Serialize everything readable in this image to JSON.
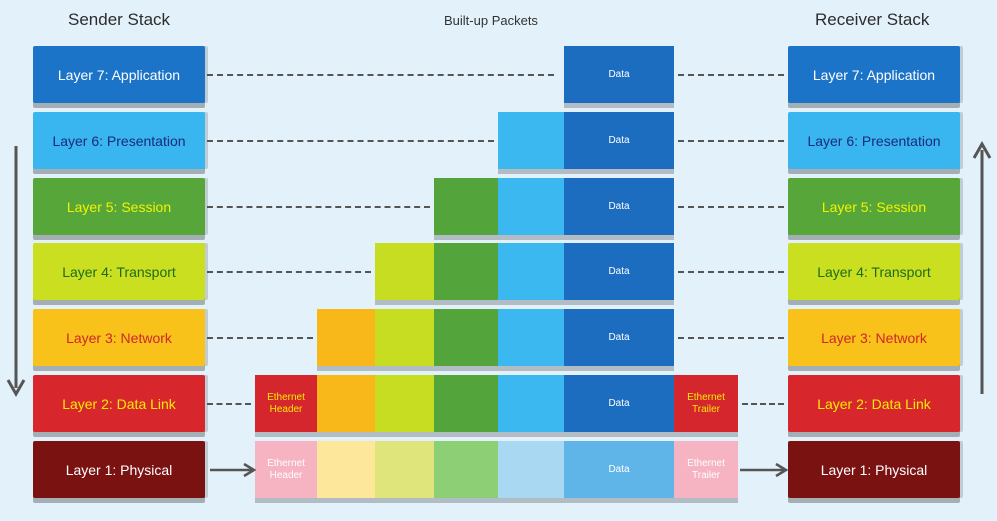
{
  "headers": {
    "sender": "Sender Stack",
    "packets": "Built-up Packets",
    "receiver": "Receiver Stack"
  },
  "layers": [
    {
      "label": "Layer 7: Application",
      "bg": "#1c74c9",
      "fg": "#ffffff"
    },
    {
      "label": "Layer 6: Presentation",
      "bg": "#39b5ef",
      "fg": "#1a2a7a"
    },
    {
      "label": "Layer 5: Session",
      "bg": "#57a63a",
      "fg": "#f4f200"
    },
    {
      "label": "Layer 4: Transport",
      "bg": "#c9df1f",
      "fg": "#1e6b1e"
    },
    {
      "label": "Layer 3: Network",
      "bg": "#f8c21a",
      "fg": "#d0262b"
    },
    {
      "label": "Layer 2: Data Link",
      "bg": "#d8262d",
      "fg": "#f5ec00"
    },
    {
      "label": "Layer 1: Physical",
      "bg": "#7a1212",
      "fg": "#ffffff"
    }
  ],
  "packets": {
    "data_label": "Data",
    "header_label": "Ethernet Header",
    "trailer_label": "Ethernet Trailer"
  },
  "colors": {
    "data": "#1c6dbf",
    "l6": "#3bb8ef",
    "l5": "#53a43a",
    "l4": "#c7dd22",
    "l3": "#f8b81a",
    "l2": "#d5262d",
    "physical_data": "#5fb4e8",
    "physical_l6": "#a8d8f2",
    "physical_l5": "#8ccf74",
    "physical_l4": "#dfe57a",
    "physical_l3": "#fde79a",
    "physical_l2": "#f6b3c2",
    "header_text": "#f5ec00"
  }
}
